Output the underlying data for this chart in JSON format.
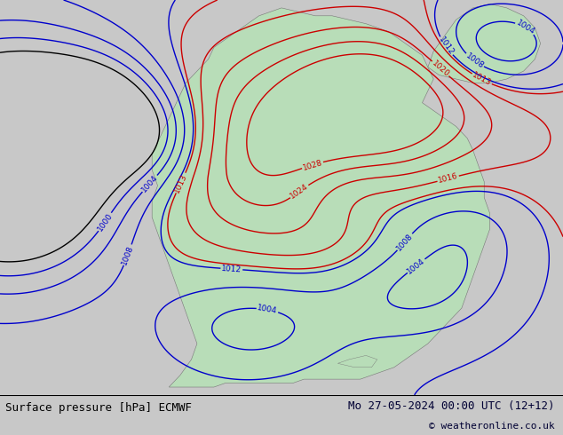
{
  "title_left": "Surface pressure [hPa] ECMWF",
  "title_right": "Mo 27-05-2024 00:00 UTC (12+12)",
  "copyright": "© weatheronline.co.uk",
  "bg_color": "#c8c8c8",
  "land_color": "#b8ddb8",
  "contour_red_color": "#cc0000",
  "contour_blue_color": "#0000cc",
  "contour_black_color": "#000000",
  "footer_bg": "#ffffff",
  "footer_text_color": "#000000",
  "footer_right_color": "#000033",
  "figsize": [
    6.34,
    4.9
  ],
  "dpi": 100
}
